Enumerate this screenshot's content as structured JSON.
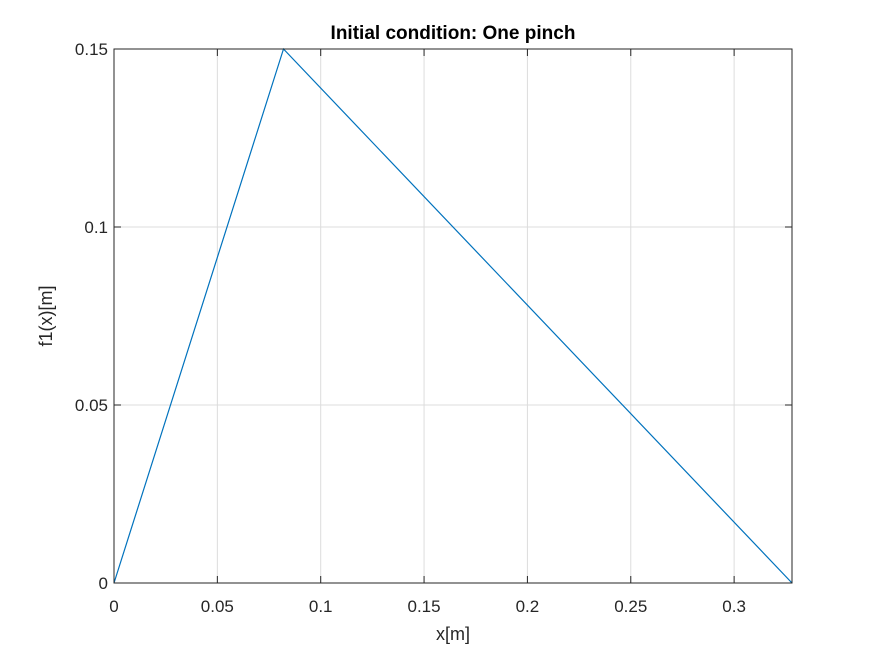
{
  "chart_data": {
    "type": "line",
    "title": "Initial condition: One pinch",
    "xlabel": "x[m]",
    "ylabel": "f1(x)[m]",
    "xlim": [
      0,
      0.328
    ],
    "ylim": [
      0,
      0.15
    ],
    "xticks": [
      0,
      0.05,
      0.1,
      0.15,
      0.2,
      0.25,
      0.3
    ],
    "xtick_labels": [
      "0",
      "0.05",
      "0.1",
      "0.15",
      "0.2",
      "0.25",
      "0.3"
    ],
    "yticks": [
      0,
      0.05,
      0.1,
      0.15
    ],
    "ytick_labels": [
      "0",
      "0.05",
      "0.1",
      "0.15"
    ],
    "grid": true,
    "series": [
      {
        "color": "#0072bd",
        "x": [
          0,
          0.082,
          0.328
        ],
        "y": [
          0,
          0.15,
          0
        ]
      }
    ]
  }
}
